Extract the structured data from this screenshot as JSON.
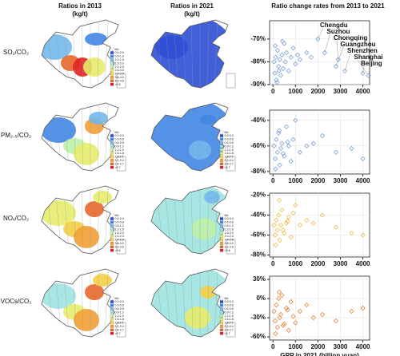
{
  "maps": {
    "col_titles": [
      "Ratios in 2013",
      "Ratios in 2021"
    ],
    "unit": "(kg/t)",
    "legend_colors": [
      "#ffffff",
      "#2e4fd6",
      "#3f86e6",
      "#72b8ec",
      "#9fe3e0",
      "#bff0a8",
      "#e6ec6a",
      "#f3cf45",
      "#f2a035",
      "#e8662a",
      "#e02020"
    ],
    "rows": [
      {
        "label": "SO₂/CO₂",
        "legend": [
          "NA",
          "0.0-0.5",
          "0.5-1.0",
          "1.0-1.5",
          "1.5-2.0",
          "2.0-2.5",
          "2.5-3.0",
          "3.0-3.5",
          "3.5-4.0",
          "4.0-4.5",
          ">4.5"
        ]
      },
      {
        "label": "PM₂.₅/CO₂",
        "legend": [
          "NA",
          "0.0-0.3",
          "0.3-0.6",
          "0.6-0.9",
          "0.9-1.2",
          "1.2-1.5",
          "1.5-1.8",
          "1.8-2.1",
          "2.1-2.4",
          "2.4-2.7",
          ">2.7"
        ]
      },
      {
        "label": "NOₓ/CO₂",
        "legend": [
          "NA",
          "0.0-0.4",
          "0.4-0.8",
          "0.8-1.2",
          "1.2-1.6",
          "1.6-2.0",
          "2.0-2.4",
          "2.4-2.8",
          "2.8-3.2",
          "3.2-3.6",
          ">3.6"
        ]
      },
      {
        "label": "VOCs/CO₂",
        "legend": [
          "NA",
          "0.0-0.3",
          "0.3-0.6",
          "0.6-0.9",
          "0.9-1.2",
          "1.2-1.5",
          "1.5-1.8",
          "1.8-2.1",
          "2.1-2.4",
          "2.4-2.7",
          ">2.7"
        ]
      }
    ]
  },
  "scatter_title": "Ratio change rates from 2013 to 2021",
  "chart_data": [
    {
      "type": "scatter",
      "color": "#6b97d4",
      "x": [
        50,
        80,
        120,
        150,
        200,
        250,
        300,
        350,
        400,
        450,
        500,
        550,
        600,
        700,
        800,
        900,
        1000,
        1100,
        1200,
        1500,
        1700,
        100,
        180,
        260,
        420
      ],
      "y": [
        -80,
        -85,
        -78,
        -88,
        -75,
        -82,
        -79,
        -86,
        -77,
        -83,
        -72,
        -80,
        -76,
        -84,
        -78,
        -74,
        -81,
        -77,
        -79,
        -76,
        -78,
        -73,
        -89,
        -84,
        -71
      ],
      "annotations": [
        {
          "text": "Chengdu",
          "x": 2000,
          "y": -70
        },
        {
          "text": "Suzhou",
          "x": 2300,
          "y": -76
        },
        {
          "text": "Chongqing",
          "x": 2900,
          "y": -79
        },
        {
          "text": "Guangzhou",
          "x": 2800,
          "y": -82
        },
        {
          "text": "Shenzhen",
          "x": 3200,
          "y": -84
        },
        {
          "text": "Shanghai",
          "x": 4250,
          "y": -86
        },
        {
          "text": "Beijing",
          "x": 4000,
          "y": -85
        }
      ],
      "xlim": [
        -150,
        4300
      ],
      "xticks": [
        0,
        1000,
        2000,
        3000,
        4000
      ],
      "ylim": [
        -90,
        -62
      ],
      "yticks": [
        {
          "value": -90,
          "label": "-90%"
        },
        {
          "value": -80,
          "label": "-80%"
        },
        {
          "value": -70,
          "label": "-70%"
        }
      ]
    },
    {
      "type": "scatter",
      "color": "#6b97d4",
      "x": [
        50,
        100,
        150,
        200,
        250,
        300,
        350,
        400,
        500,
        600,
        700,
        800,
        900,
        1000,
        1200,
        1500,
        1800,
        2200,
        2800,
        3500,
        4000,
        120,
        280,
        450,
        650
      ],
      "y": [
        -60,
        -70,
        -55,
        -65,
        -50,
        -75,
        -62,
        -58,
        -68,
        -45,
        -60,
        -72,
        -55,
        -40,
        -65,
        -60,
        -58,
        -52,
        -65,
        -62,
        -70,
        -78,
        -48,
        -66,
        -57
      ],
      "xlim": [
        -150,
        4300
      ],
      "xticks": [
        0,
        1000,
        2000,
        3000,
        4000
      ],
      "ylim": [
        -82,
        -32
      ],
      "yticks": [
        {
          "value": -80,
          "label": "-80%"
        },
        {
          "value": -60,
          "label": "-60%"
        },
        {
          "value": -40,
          "label": "-40%"
        }
      ]
    },
    {
      "type": "scatter",
      "color": "#f2b43a",
      "x": [
        50,
        100,
        150,
        200,
        250,
        300,
        350,
        400,
        500,
        600,
        700,
        800,
        900,
        1000,
        1200,
        1500,
        1800,
        2200,
        2800,
        3500,
        4000,
        120,
        280,
        450,
        650
      ],
      "y": [
        -50,
        -60,
        -45,
        -55,
        -40,
        -65,
        -50,
        -35,
        -58,
        -48,
        -42,
        -62,
        -38,
        -30,
        -50,
        -45,
        -48,
        -40,
        -52,
        -58,
        -60,
        -70,
        -25,
        -55,
        -46
      ],
      "xlim": [
        -150,
        4300
      ],
      "xticks": [
        0,
        1000,
        2000,
        3000,
        4000
      ],
      "ylim": [
        -82,
        -18
      ],
      "yticks": [
        {
          "value": -80,
          "label": "-80%"
        },
        {
          "value": -60,
          "label": "-60%"
        },
        {
          "value": -40,
          "label": "-40%"
        },
        {
          "value": -20,
          "label": "-20%"
        }
      ]
    },
    {
      "type": "scatter",
      "color": "#e0772a",
      "x": [
        50,
        100,
        150,
        200,
        250,
        300,
        350,
        400,
        500,
        600,
        700,
        800,
        900,
        1000,
        1200,
        1500,
        1800,
        2200,
        2800,
        3500,
        4000,
        120,
        280,
        450,
        650
      ],
      "y": [
        -20,
        -35,
        -10,
        -45,
        0,
        -30,
        -25,
        5,
        -40,
        -15,
        -50,
        -5,
        -28,
        -38,
        -20,
        -10,
        -30,
        -25,
        -35,
        -20,
        -15,
        -55,
        10,
        -42,
        -18
      ],
      "xlim": [
        -150,
        4300
      ],
      "xticks": [
        0,
        1000,
        2000,
        3000,
        4000
      ],
      "ylim": [
        -65,
        35
      ],
      "yticks": [
        {
          "value": -60,
          "label": "-60%"
        },
        {
          "value": -30,
          "label": "-30%"
        },
        {
          "value": 0,
          "label": "0%"
        },
        {
          "value": 30,
          "label": "30%"
        }
      ],
      "xlabel": "GRP in 2021 (billion yuan)"
    }
  ]
}
